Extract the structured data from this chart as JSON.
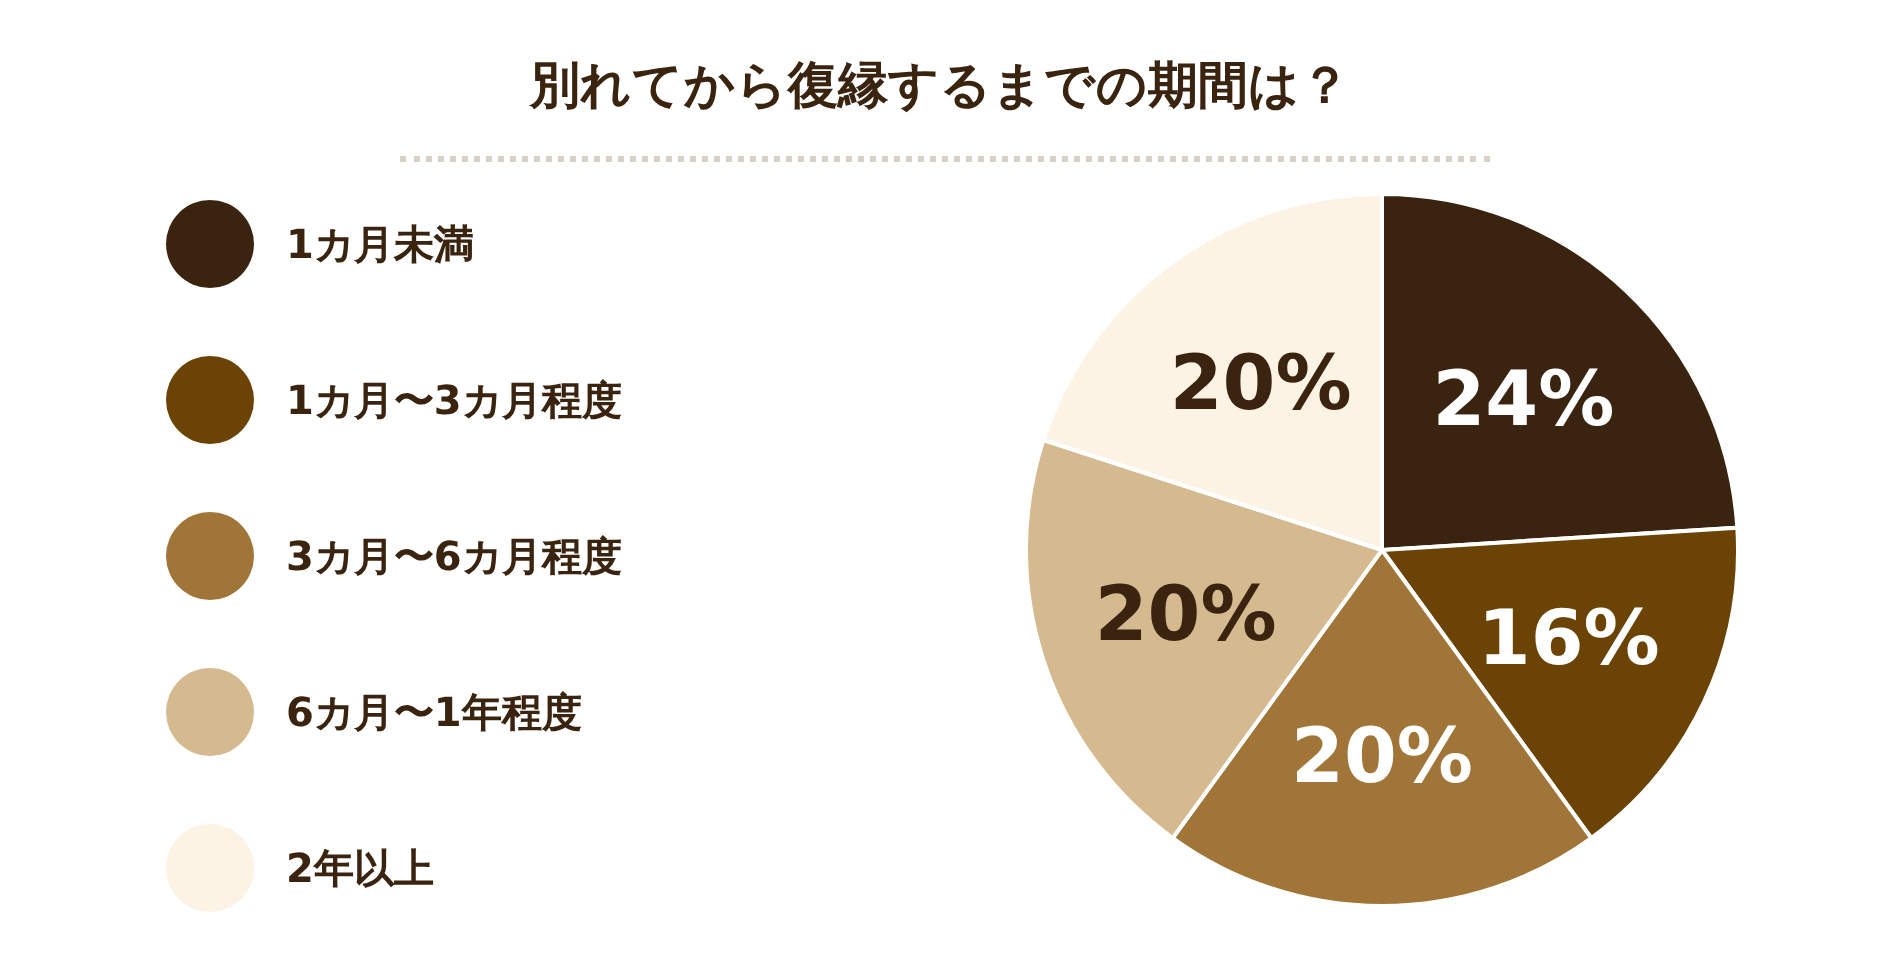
{
  "chart_data": {
    "type": "pie",
    "title": "別れてから復縁するまでの期間は？",
    "categories": [
      "1カ月未満",
      "1カ月〜3カ月程度",
      "3カ月〜6カ月程度",
      "6カ月〜1年程度",
      "2年以上"
    ],
    "values": [
      24,
      16,
      20,
      20,
      20
    ],
    "value_labels": [
      "24%",
      "16%",
      "20%",
      "20%",
      "20%"
    ],
    "colors": [
      "#3a2410",
      "#6b4405",
      "#a07537",
      "#d5b98f",
      "#fdf3e4"
    ],
    "legend": "left"
  }
}
